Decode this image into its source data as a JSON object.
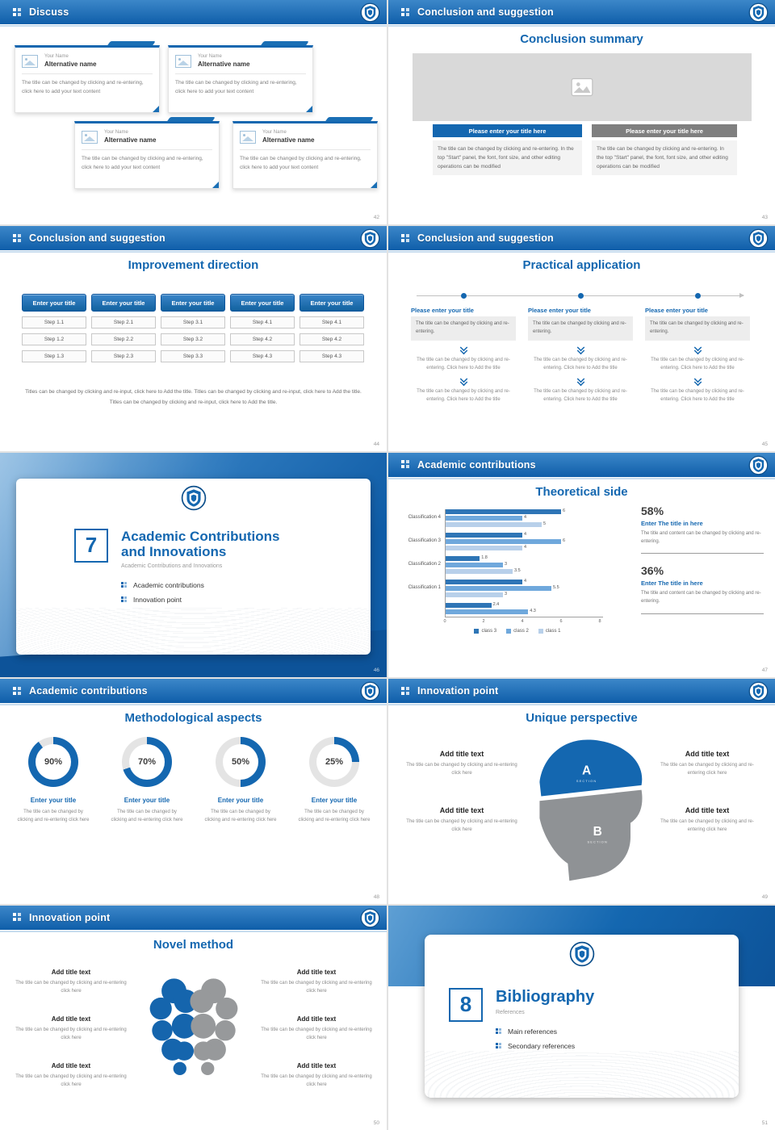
{
  "theme": {
    "primary": "#1467b0",
    "primary_dark": "#0d559c",
    "gray": "#7f7f7f"
  },
  "slides": {
    "discuss": {
      "header": "Discuss",
      "page": "42",
      "card": {
        "name_label": "Your Name",
        "alt_name": "Alternative name",
        "body": "The title can be changed by clicking and re-entering, click here to add your text content"
      }
    },
    "summary": {
      "header": "Conclusion and suggestion",
      "page": "43",
      "title": "Conclusion summary",
      "button_blue": "Please enter your title here",
      "button_gray": "Please enter your title here",
      "body": "The title can be changed by clicking and re-entering. In the top \"Start\" panel, the font, font size, and other editing operations can be modified"
    },
    "improvement": {
      "header": "Conclusion and suggestion",
      "page": "44",
      "title": "Improvement direction",
      "button_label": "Enter your title",
      "columns": [
        {
          "steps": [
            "Step 1.1",
            "Step 1.2",
            "Step 1.3"
          ]
        },
        {
          "steps": [
            "Step 2.1",
            "Step 2.2",
            "Step 2.3"
          ]
        },
        {
          "steps": [
            "Step 3.1",
            "Step 3.2",
            "Step 3.3"
          ]
        },
        {
          "steps": [
            "Step 4.1",
            "Step 4.2",
            "Step 4.3"
          ]
        },
        {
          "steps": [
            "Step 4.1",
            "Step 4.2",
            "Step 4.3"
          ]
        }
      ],
      "footer": "Titles can be changed by clicking and re-input, click here to Add the title. Titles can be changed by clicking and re-input, click here to Add the title. Titles can be changed by clicking and re-input, click here to Add the title."
    },
    "practical": {
      "header": "Conclusion and suggestion",
      "page": "45",
      "title": "Practical application",
      "column": {
        "title": "Please enter your title",
        "box": "The title can be changed by clicking and re-entering.",
        "item": "The title can be changed by clicking and re-entering. Click here to Add the title"
      }
    },
    "divider7": {
      "page": "46",
      "number": "7",
      "title_line1": "Academic Contributions",
      "title_line2": "and Innovations",
      "subtitle": "Academic Contributions and Innovations",
      "bullets": [
        "Academic contributions",
        "Innovation point"
      ]
    },
    "theoretical": {
      "header": "Academic contributions",
      "page": "47",
      "title": "Theoretical side",
      "stats": [
        {
          "pct": "58%",
          "title": "Enter The title in here",
          "body": "The title and content can be changed by clicking and re-entering."
        },
        {
          "pct": "36%",
          "title": "Enter The title in here",
          "body": "The title and content can be changed by clicking and re-entering."
        }
      ]
    },
    "methodological": {
      "header": "Academic contributions",
      "page": "48",
      "title": "Methodological aspects",
      "item_title": "Enter your title",
      "item_body": "The title can be changed by clicking and re-entering click here"
    },
    "unique": {
      "header": "Innovation point",
      "page": "49",
      "title": "Unique perspective",
      "item_title": "Add title text",
      "item_body": "The title can be changed by clicking and re-entering click here",
      "section_a": "A",
      "section_b": "B",
      "section_label": "SECTION"
    },
    "novel": {
      "header": "Innovation point",
      "page": "50",
      "title": "Novel method",
      "item_title": "Add title text",
      "item_body": "The title can be changed by clicking and re-entering click here"
    },
    "divider8": {
      "page": "51",
      "number": "8",
      "title": "Bibliography",
      "subtitle": "References",
      "bullets": [
        "Main references",
        "Secondary references"
      ]
    }
  },
  "chart_data": [
    {
      "type": "bar",
      "orientation": "horizontal",
      "title": "Theoretical side",
      "categories": [
        "Classification 4",
        "Classification 3",
        "Classification 2",
        "Classification 1",
        ""
      ],
      "series": [
        {
          "name": "class 3",
          "color": "#2e75b6",
          "values": [
            6,
            4,
            1.8,
            4,
            2.4
          ]
        },
        {
          "name": "class 2",
          "color": "#6fa8dc",
          "values": [
            4,
            6,
            3,
            5.5,
            4.3
          ]
        },
        {
          "name": "class 1",
          "color": "#b8d0ea",
          "values": [
            5,
            4,
            3.5,
            3,
            null
          ]
        }
      ],
      "xlim": [
        0,
        8
      ],
      "xticks": [
        0,
        2,
        4,
        6,
        8
      ],
      "legend_position": "bottom"
    },
    {
      "type": "pie",
      "variant": "donut-progress",
      "title": "Methodological aspects",
      "values": [
        90,
        70,
        50,
        25
      ],
      "unit": "%",
      "color": "#1467b0",
      "track_color": "#e4e4e4",
      "labels": [
        "Enter your title",
        "Enter your title",
        "Enter your title",
        "Enter your title"
      ]
    }
  ]
}
